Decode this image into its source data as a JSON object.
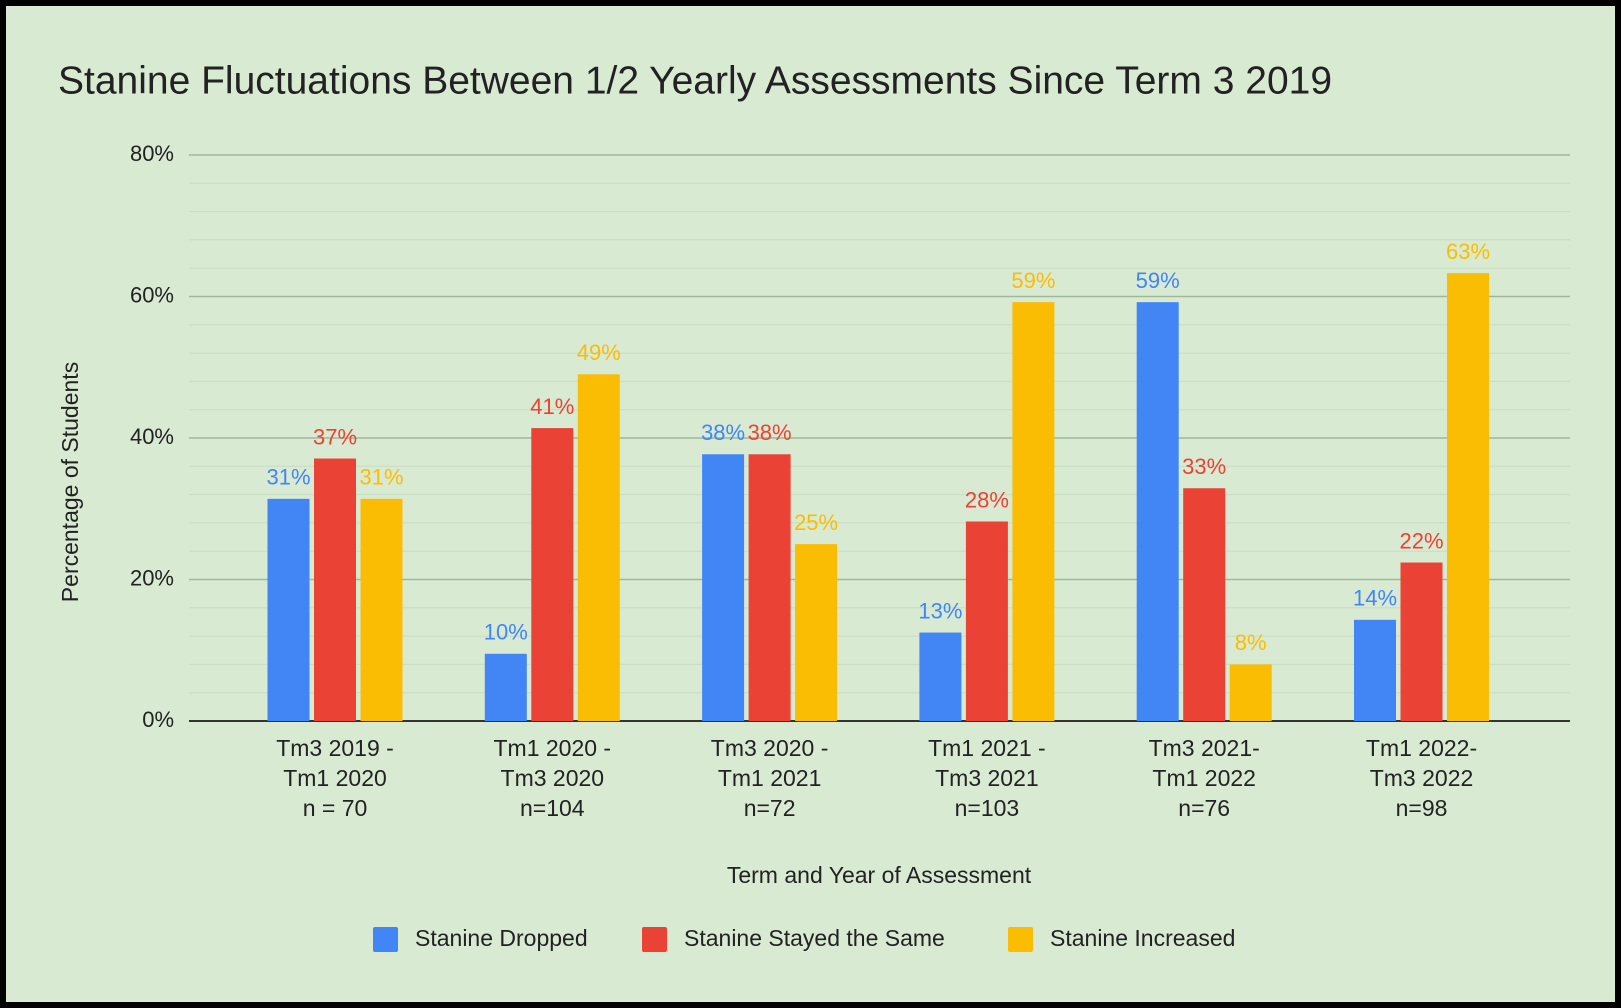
{
  "chart_data": {
    "type": "bar",
    "title": "Stanine Fluctuations Between 1/2 Yearly Assessments Since Term 3 2019",
    "x_label": "Term and Year of Assessment",
    "y_label": "Percentage of Students",
    "categories": [
      [
        "Tm3 2019 -",
        "Tm1 2020",
        "n = 70"
      ],
      [
        "Tm1 2020 -",
        "Tm3 2020",
        "n=104"
      ],
      [
        "Tm3 2020 -",
        "Tm1 2021",
        "n=72"
      ],
      [
        "Tm1 2021 -",
        "Tm3 2021",
        "n=103"
      ],
      [
        "Tm3 2021-",
        "Tm1 2022",
        "n=76"
      ],
      [
        "Tm1 2022-",
        "Tm3 2022",
        "n=98"
      ]
    ],
    "series": [
      {
        "name": "Stanine Dropped",
        "color": "#4285f4",
        "values": [
          31.4,
          9.5,
          37.7,
          12.5,
          59.2,
          14.3
        ],
        "value_labels": [
          "31%",
          "10%",
          "38%",
          "13%",
          "59%",
          "14%"
        ]
      },
      {
        "name": "Stanine Stayed the Same",
        "color": "#ea4335",
        "values": [
          37.1,
          41.4,
          37.7,
          28.2,
          32.9,
          22.4
        ],
        "value_labels": [
          "37%",
          "41%",
          "38%",
          "28%",
          "33%",
          "22%"
        ]
      },
      {
        "name": "Stanine Increased",
        "color": "#fbbc04",
        "values": [
          31.4,
          49.0,
          25.0,
          59.2,
          8.0,
          63.3
        ],
        "value_labels": [
          "31%",
          "49%",
          "25%",
          "59%",
          "8%",
          "63%"
        ]
      }
    ],
    "ylim": [
      0,
      80
    ],
    "yticks": [
      {
        "value": 0,
        "label": "0%"
      },
      {
        "value": 20,
        "label": "20%"
      },
      {
        "value": 40,
        "label": "40%"
      },
      {
        "value": 60,
        "label": "60%"
      },
      {
        "value": 80,
        "label": "80%"
      }
    ],
    "yminor_ticks": [
      4,
      8,
      12,
      16,
      24,
      28,
      32,
      36,
      44,
      48,
      52,
      56,
      64,
      68,
      72,
      76
    ],
    "grid": true,
    "legend": "bottom"
  }
}
